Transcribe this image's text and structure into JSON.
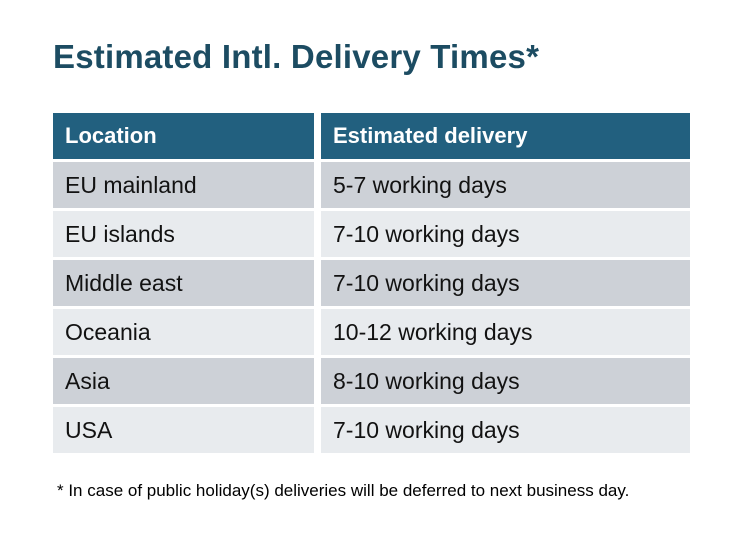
{
  "title": "Estimated Intl. Delivery Times*",
  "table": {
    "columns": [
      "Location",
      "Estimated delivery"
    ],
    "rows": [
      {
        "location": "EU mainland",
        "delivery": "5-7 working days"
      },
      {
        "location": "EU islands",
        "delivery": "7-10 working days"
      },
      {
        "location": "Middle east",
        "delivery": "7-10 working days"
      },
      {
        "location": "Oceania",
        "delivery": "10-12 working days"
      },
      {
        "location": "Asia",
        "delivery": "8-10 working days"
      },
      {
        "location": "USA",
        "delivery": "7-10 working days"
      }
    ]
  },
  "footnote": "* In case of public holiday(s) deliveries will be deferred to next business day.",
  "colors": {
    "page_bg": "#FFFFFF",
    "title_color": "#1C4C62",
    "header_bg": "#22607F",
    "header_text": "#FFFFFF",
    "row_odd_bg": "#CDD1D7",
    "row_even_bg": "#E8EBEE",
    "body_text": "#121212"
  },
  "chart_data": {
    "type": "table",
    "title": "Estimated Intl. Delivery Times*",
    "columns": [
      "Location",
      "Estimated delivery"
    ],
    "rows": [
      [
        "EU mainland",
        "5-7 working days"
      ],
      [
        "EU islands",
        "7-10 working days"
      ],
      [
        "Middle east",
        "7-10 working days"
      ],
      [
        "Oceania",
        "10-12 working days"
      ],
      [
        "Asia",
        "8-10 working days"
      ],
      [
        "USA",
        "7-10 working days"
      ]
    ],
    "footnote": "* In case of public holiday(s) deliveries will be deferred to next business day."
  }
}
